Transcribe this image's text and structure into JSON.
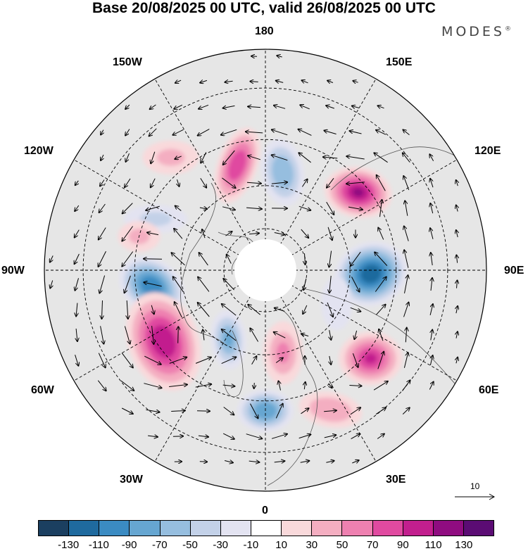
{
  "title": "Base 20/08/2025 00 UTC, valid 26/08/2025 00 UTC",
  "brand": "MODES",
  "brand_mark": "®",
  "longitude_labels": {
    "lon_180": "180",
    "lon_150e": "150E",
    "lon_120e": "120E",
    "lon_90e": "90E",
    "lon_60e": "60E",
    "lon_30e": "30E",
    "lon_0": "0",
    "lon_30w": "30W",
    "lon_60w": "60W",
    "lon_90w": "90W",
    "lon_120w": "120W",
    "lon_150w": "150W"
  },
  "vector_scale_label": "10",
  "colorbar": {
    "ticks": [
      "-130",
      "-110",
      "-90",
      "-70",
      "-50",
      "-30",
      "-10",
      "10",
      "30",
      "50",
      "70",
      "90",
      "110",
      "130"
    ],
    "colors": [
      "#1b3f60",
      "#1f6a9e",
      "#3b8bc2",
      "#66a6d1",
      "#96bedf",
      "#c3d1e8",
      "#e3e3f1",
      "#ffffff",
      "#f9d9db",
      "#f4aec1",
      "#ee80b0",
      "#e04aa0",
      "#c21f8e",
      "#8f0c80",
      "#5b0c74"
    ]
  },
  "anomalies": [
    {
      "name": "low-90w",
      "lon": -88,
      "lat": 53,
      "value": -120,
      "rx": 52,
      "ry": 45,
      "rot": -20
    },
    {
      "name": "high-120w",
      "lon": -130,
      "lat": 48,
      "value": 115,
      "rx": 48,
      "ry": 36,
      "rot": 10
    },
    {
      "name": "low-165w",
      "lon": -170,
      "lat": 55,
      "value": -70,
      "rx": 30,
      "ry": 48,
      "rot": -10
    },
    {
      "name": "high-170e",
      "lon": 165,
      "lat": 52,
      "value": 80,
      "rx": 28,
      "ry": 56,
      "rot": 20
    },
    {
      "name": "high-120e",
      "lon": 115,
      "lat": 48,
      "value": -35,
      "rx": 45,
      "ry": 20,
      "rot": 0
    },
    {
      "name": "high-110e",
      "lon": 105,
      "lat": 45,
      "value": 30,
      "rx": 30,
      "ry": 22,
      "rot": 0
    },
    {
      "name": "low-85e",
      "lon": 82,
      "lat": 50,
      "value": -110,
      "rx": 50,
      "ry": 38,
      "rot": 35
    },
    {
      "name": "high-60e",
      "lon": 55,
      "lat": 47,
      "value": 105,
      "rx": 50,
      "ry": 72,
      "rot": -20
    },
    {
      "name": "low-30e",
      "lon": 28,
      "lat": 62,
      "value": -75,
      "rx": 25,
      "ry": 42,
      "rot": -5
    },
    {
      "name": "low-0",
      "lon": 0,
      "lat": 42,
      "value": -90,
      "rx": 40,
      "ry": 30,
      "rot": 0
    },
    {
      "name": "high-45w",
      "lon": -50,
      "lat": 43,
      "value": 95,
      "rx": 45,
      "ry": 38,
      "rot": 0
    },
    {
      "name": "high-15w",
      "lon": -12,
      "lat": 60,
      "value": 50,
      "rx": 28,
      "ry": 45,
      "rot": 0
    },
    {
      "name": "high-25w",
      "lon": -25,
      "lat": 38,
      "value": 40,
      "rx": 45,
      "ry": 25,
      "rot": 10
    },
    {
      "name": "low-65w",
      "lon": -65,
      "lat": 62,
      "value": -30,
      "rx": 22,
      "ry": 38,
      "rot": 0
    },
    {
      "name": "high-140e",
      "lon": 140,
      "lat": 40,
      "value": 35,
      "rx": 40,
      "ry": 24,
      "rot": 0
    }
  ]
}
